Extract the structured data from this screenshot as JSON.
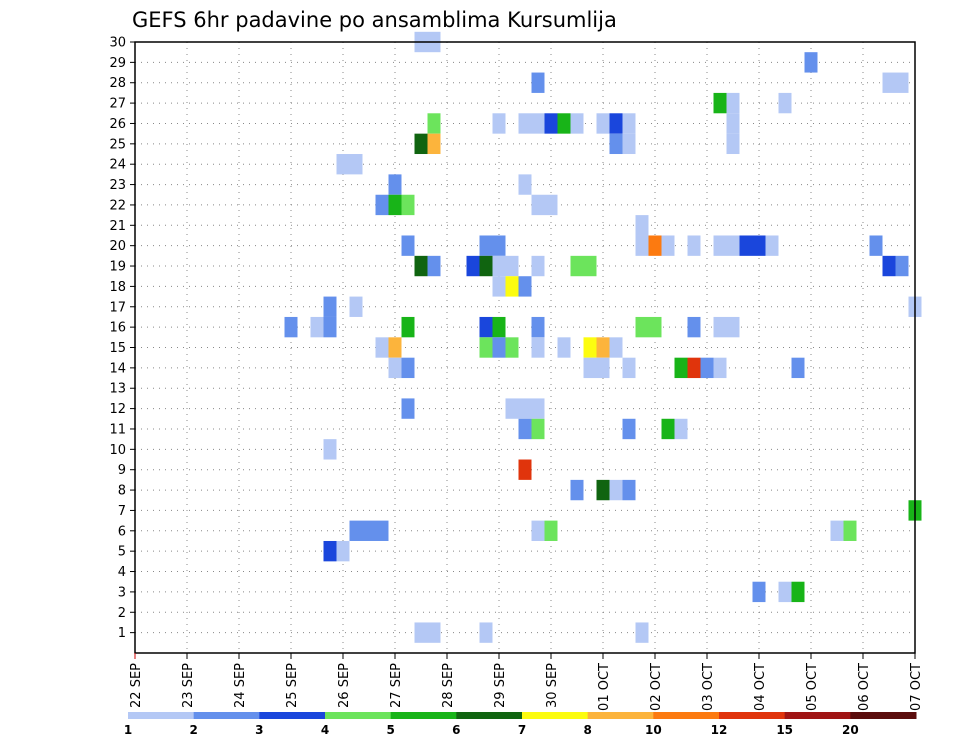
{
  "chart_data": {
    "type": "heatmap",
    "title": "GEFS 6hr padavine po ansamblima Kursumlija",
    "x_tick_labels": [
      "22 SEP",
      "23 SEP",
      "24 SEP",
      "25 SEP",
      "26 SEP",
      "27 SEP",
      "28 SEP",
      "29 SEP",
      "30 SEP",
      "01 OCT",
      "02 OCT",
      "03 OCT",
      "04 OCT",
      "05 OCT",
      "06 OCT",
      "07 OCT"
    ],
    "x_range_hours": [
      0,
      360
    ],
    "y_tick_labels": [
      "1",
      "2",
      "3",
      "4",
      "5",
      "6",
      "7",
      "8",
      "9",
      "10",
      "11",
      "12",
      "13",
      "14",
      "15",
      "16",
      "17",
      "18",
      "19",
      "20",
      "21",
      "22",
      "23",
      "24",
      "25",
      "26",
      "27",
      "28",
      "29",
      "30"
    ],
    "y_range_members": [
      0,
      30
    ],
    "grid": true,
    "legend_position": "bottom",
    "legend": {
      "labels": [
        "1",
        "2",
        "3",
        "4",
        "5",
        "6",
        "7",
        "8",
        "10",
        "12",
        "15",
        "20"
      ],
      "colors": [
        "#b4c8f5",
        "#6490ec",
        "#1a46dc",
        "#6ce45c",
        "#18b418",
        "#106410",
        "#fcfc10",
        "#fcb43c",
        "#fc7a10",
        "#e0340c",
        "#a01414",
        "#5a0c0c"
      ]
    },
    "cells": [
      {
        "member": 30,
        "hour": 132,
        "level": 1
      },
      {
        "member": 30,
        "hour": 138,
        "level": 1
      },
      {
        "member": 29,
        "hour": 312,
        "level": 2
      },
      {
        "member": 28,
        "hour": 186,
        "level": 2
      },
      {
        "member": 28,
        "hour": 348,
        "level": 1
      },
      {
        "member": 28,
        "hour": 354,
        "level": 1
      },
      {
        "member": 27,
        "hour": 270,
        "level": 5
      },
      {
        "member": 27,
        "hour": 276,
        "level": 1
      },
      {
        "member": 27,
        "hour": 300,
        "level": 1
      },
      {
        "member": 26,
        "hour": 138,
        "level": 4
      },
      {
        "member": 26,
        "hour": 168,
        "level": 1
      },
      {
        "member": 26,
        "hour": 180,
        "level": 1
      },
      {
        "member": 26,
        "hour": 186,
        "level": 1
      },
      {
        "member": 26,
        "hour": 192,
        "level": 3
      },
      {
        "member": 26,
        "hour": 198,
        "level": 5
      },
      {
        "member": 26,
        "hour": 204,
        "level": 1
      },
      {
        "member": 26,
        "hour": 216,
        "level": 1
      },
      {
        "member": 26,
        "hour": 222,
        "level": 3
      },
      {
        "member": 26,
        "hour": 228,
        "level": 1
      },
      {
        "member": 26,
        "hour": 276,
        "level": 1
      },
      {
        "member": 25,
        "hour": 132,
        "level": 6
      },
      {
        "member": 25,
        "hour": 138,
        "level": 8
      },
      {
        "member": 25,
        "hour": 222,
        "level": 2
      },
      {
        "member": 25,
        "hour": 228,
        "level": 1
      },
      {
        "member": 25,
        "hour": 276,
        "level": 1
      },
      {
        "member": 24,
        "hour": 96,
        "level": 1
      },
      {
        "member": 24,
        "hour": 102,
        "level": 1
      },
      {
        "member": 23,
        "hour": 120,
        "level": 2
      },
      {
        "member": 23,
        "hour": 180,
        "level": 1
      },
      {
        "member": 22,
        "hour": 114,
        "level": 2
      },
      {
        "member": 22,
        "hour": 120,
        "level": 5
      },
      {
        "member": 22,
        "hour": 126,
        "level": 4
      },
      {
        "member": 22,
        "hour": 186,
        "level": 1
      },
      {
        "member": 22,
        "hour": 192,
        "level": 1
      },
      {
        "member": 21,
        "hour": 234,
        "level": 1
      },
      {
        "member": 20,
        "hour": 126,
        "level": 2
      },
      {
        "member": 20,
        "hour": 162,
        "level": 2
      },
      {
        "member": 20,
        "hour": 168,
        "level": 2
      },
      {
        "member": 20,
        "hour": 234,
        "level": 1
      },
      {
        "member": 20,
        "hour": 240,
        "level": 10
      },
      {
        "member": 20,
        "hour": 246,
        "level": 1
      },
      {
        "member": 20,
        "hour": 258,
        "level": 1
      },
      {
        "member": 20,
        "hour": 270,
        "level": 1
      },
      {
        "member": 20,
        "hour": 276,
        "level": 1
      },
      {
        "member": 20,
        "hour": 282,
        "level": 3
      },
      {
        "member": 20,
        "hour": 288,
        "level": 3
      },
      {
        "member": 20,
        "hour": 294,
        "level": 1
      },
      {
        "member": 20,
        "hour": 342,
        "level": 2
      },
      {
        "member": 19,
        "hour": 132,
        "level": 6
      },
      {
        "member": 19,
        "hour": 138,
        "level": 2
      },
      {
        "member": 19,
        "hour": 156,
        "level": 3
      },
      {
        "member": 19,
        "hour": 162,
        "level": 6
      },
      {
        "member": 19,
        "hour": 168,
        "level": 1
      },
      {
        "member": 19,
        "hour": 174,
        "level": 1
      },
      {
        "member": 19,
        "hour": 186,
        "level": 1
      },
      {
        "member": 19,
        "hour": 204,
        "level": 4
      },
      {
        "member": 19,
        "hour": 210,
        "level": 4
      },
      {
        "member": 19,
        "hour": 348,
        "level": 3
      },
      {
        "member": 19,
        "hour": 354,
        "level": 2
      },
      {
        "member": 18,
        "hour": 168,
        "level": 1
      },
      {
        "member": 18,
        "hour": 174,
        "level": 7
      },
      {
        "member": 18,
        "hour": 180,
        "level": 2
      },
      {
        "member": 17,
        "hour": 90,
        "level": 2
      },
      {
        "member": 17,
        "hour": 102,
        "level": 1
      },
      {
        "member": 17,
        "hour": 360,
        "level": 1
      },
      {
        "member": 16,
        "hour": 72,
        "level": 2
      },
      {
        "member": 16,
        "hour": 84,
        "level": 1
      },
      {
        "member": 16,
        "hour": 90,
        "level": 2
      },
      {
        "member": 16,
        "hour": 126,
        "level": 5
      },
      {
        "member": 16,
        "hour": 162,
        "level": 3
      },
      {
        "member": 16,
        "hour": 168,
        "level": 5
      },
      {
        "member": 16,
        "hour": 186,
        "level": 2
      },
      {
        "member": 16,
        "hour": 234,
        "level": 4
      },
      {
        "member": 16,
        "hour": 240,
        "level": 4
      },
      {
        "member": 16,
        "hour": 258,
        "level": 2
      },
      {
        "member": 16,
        "hour": 270,
        "level": 1
      },
      {
        "member": 16,
        "hour": 276,
        "level": 1
      },
      {
        "member": 15,
        "hour": 114,
        "level": 1
      },
      {
        "member": 15,
        "hour": 120,
        "level": 8
      },
      {
        "member": 15,
        "hour": 162,
        "level": 4
      },
      {
        "member": 15,
        "hour": 168,
        "level": 2
      },
      {
        "member": 15,
        "hour": 174,
        "level": 4
      },
      {
        "member": 15,
        "hour": 186,
        "level": 1
      },
      {
        "member": 15,
        "hour": 198,
        "level": 1
      },
      {
        "member": 15,
        "hour": 210,
        "level": 7
      },
      {
        "member": 15,
        "hour": 216,
        "level": 8
      },
      {
        "member": 15,
        "hour": 222,
        "level": 1
      },
      {
        "member": 14,
        "hour": 120,
        "level": 1
      },
      {
        "member": 14,
        "hour": 126,
        "level": 2
      },
      {
        "member": 14,
        "hour": 210,
        "level": 1
      },
      {
        "member": 14,
        "hour": 216,
        "level": 1
      },
      {
        "member": 14,
        "hour": 228,
        "level": 1
      },
      {
        "member": 14,
        "hour": 252,
        "level": 5
      },
      {
        "member": 14,
        "hour": 258,
        "level": 12
      },
      {
        "member": 14,
        "hour": 264,
        "level": 2
      },
      {
        "member": 14,
        "hour": 270,
        "level": 1
      },
      {
        "member": 14,
        "hour": 306,
        "level": 2
      },
      {
        "member": 12,
        "hour": 126,
        "level": 2
      },
      {
        "member": 12,
        "hour": 174,
        "level": 1
      },
      {
        "member": 12,
        "hour": 180,
        "level": 1
      },
      {
        "member": 12,
        "hour": 186,
        "level": 1
      },
      {
        "member": 11,
        "hour": 180,
        "level": 2
      },
      {
        "member": 11,
        "hour": 186,
        "level": 4
      },
      {
        "member": 11,
        "hour": 228,
        "level": 2
      },
      {
        "member": 11,
        "hour": 246,
        "level": 5
      },
      {
        "member": 11,
        "hour": 252,
        "level": 1
      },
      {
        "member": 10,
        "hour": 90,
        "level": 1
      },
      {
        "member": 9,
        "hour": 180,
        "level": 12
      },
      {
        "member": 8,
        "hour": 204,
        "level": 2
      },
      {
        "member": 8,
        "hour": 216,
        "level": 6
      },
      {
        "member": 8,
        "hour": 222,
        "level": 1
      },
      {
        "member": 8,
        "hour": 228,
        "level": 2
      },
      {
        "member": 7,
        "hour": 360,
        "level": 5
      },
      {
        "member": 6,
        "hour": 102,
        "level": 2
      },
      {
        "member": 6,
        "hour": 108,
        "level": 2
      },
      {
        "member": 6,
        "hour": 114,
        "level": 2
      },
      {
        "member": 6,
        "hour": 186,
        "level": 1
      },
      {
        "member": 6,
        "hour": 192,
        "level": 4
      },
      {
        "member": 6,
        "hour": 324,
        "level": 1
      },
      {
        "member": 6,
        "hour": 330,
        "level": 4
      },
      {
        "member": 5,
        "hour": 90,
        "level": 3
      },
      {
        "member": 5,
        "hour": 96,
        "level": 1
      },
      {
        "member": 3,
        "hour": 288,
        "level": 2
      },
      {
        "member": 3,
        "hour": 300,
        "level": 1
      },
      {
        "member": 3,
        "hour": 306,
        "level": 5
      },
      {
        "member": 1,
        "hour": 132,
        "level": 1
      },
      {
        "member": 1,
        "hour": 138,
        "level": 1
      },
      {
        "member": 1,
        "hour": 162,
        "level": 1
      },
      {
        "member": 1,
        "hour": 234,
        "level": 1
      }
    ]
  }
}
